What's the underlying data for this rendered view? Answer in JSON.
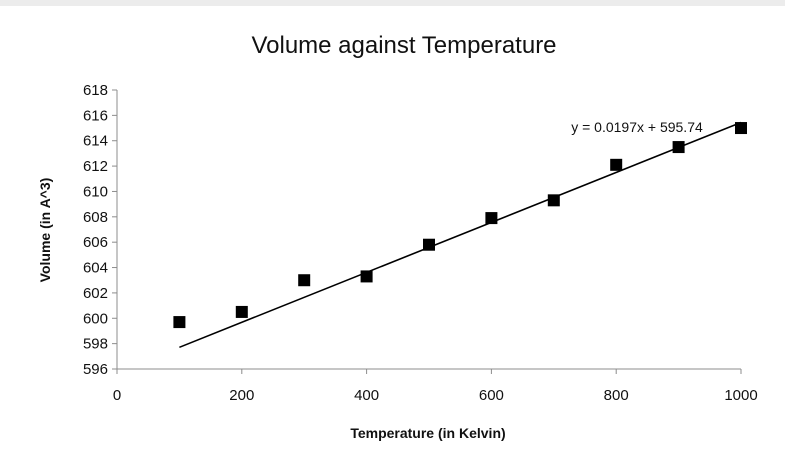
{
  "chart_data": {
    "type": "scatter",
    "title": "Volume against Temperature",
    "xlabel": "Temperature (in Kelvin)",
    "ylabel": "Volume (in A^3)",
    "xlim": [
      0,
      1000
    ],
    "ylim": [
      596,
      618
    ],
    "xticks": [
      0,
      200,
      400,
      600,
      800,
      1000
    ],
    "yticks": [
      596,
      598,
      600,
      602,
      604,
      606,
      608,
      610,
      612,
      614,
      616,
      618
    ],
    "x": [
      100,
      200,
      300,
      400,
      500,
      600,
      700,
      800,
      900,
      1000
    ],
    "y": [
      599.7,
      600.5,
      603.0,
      603.3,
      605.8,
      607.9,
      609.3,
      612.1,
      613.5,
      615.0
    ],
    "trendline": {
      "slope": 0.0197,
      "intercept": 595.74,
      "x_range": [
        100,
        1000
      ],
      "equation": "y = 0.0197x + 595.74"
    },
    "grid": false,
    "legend": "none",
    "marker": "square",
    "colors": {
      "marker": "#000000",
      "line": "#000000",
      "axis": "#8c8c8c"
    }
  }
}
